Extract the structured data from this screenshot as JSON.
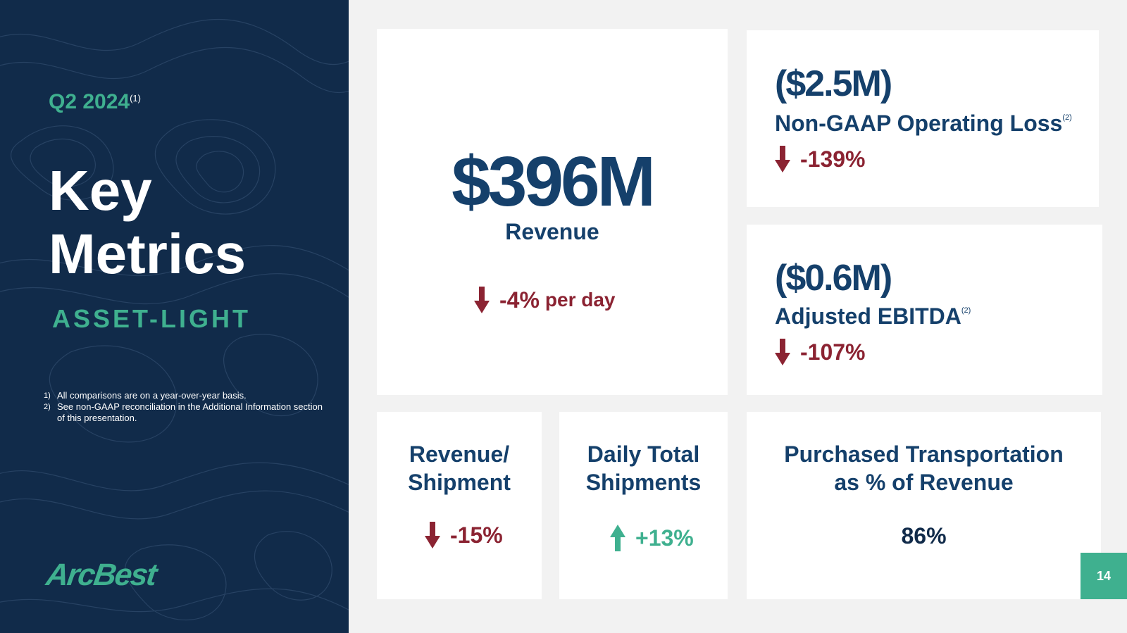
{
  "sidebar": {
    "period": "Q2 2024",
    "period_note": "(1)",
    "title_line1": "Key",
    "title_line2": "Metrics",
    "subtitle": "ASSET-LIGHT",
    "footnotes": [
      {
        "num": "1)",
        "text": "All comparisons are on a year-over-year basis."
      },
      {
        "num": "2)",
        "text": "See non-GAAP reconciliation in the Additional Information section of this presentation."
      }
    ],
    "logo": "ArcBest"
  },
  "revenue": {
    "value": "$396M",
    "label": "Revenue",
    "change": "-4%",
    "change_suffix": "per day",
    "direction": "down"
  },
  "operating_loss": {
    "value": "($2.5M)",
    "label": "Non-GAAP Operating Loss",
    "note": "(2)",
    "change": "-139%",
    "direction": "down"
  },
  "ebitda": {
    "value": "($0.6M)",
    "label": "Adjusted EBITDA",
    "note": "(2)",
    "change": "-107%",
    "direction": "down"
  },
  "revenue_per_shipment": {
    "title_line1": "Revenue/",
    "title_line2": "Shipment",
    "change": "-15%",
    "direction": "down"
  },
  "daily_shipments": {
    "title_line1": "Daily Total",
    "title_line2": "Shipments",
    "change": "+13%",
    "direction": "up"
  },
  "purchased_transportation": {
    "title_line1": "Purchased Transportation",
    "title_line2": "as % of Revenue",
    "value": "86%"
  },
  "page_number": "14",
  "colors": {
    "navy": "#112b4a",
    "blue_text": "#15406b",
    "teal": "#3fb08f",
    "down_red": "#8b2332"
  }
}
